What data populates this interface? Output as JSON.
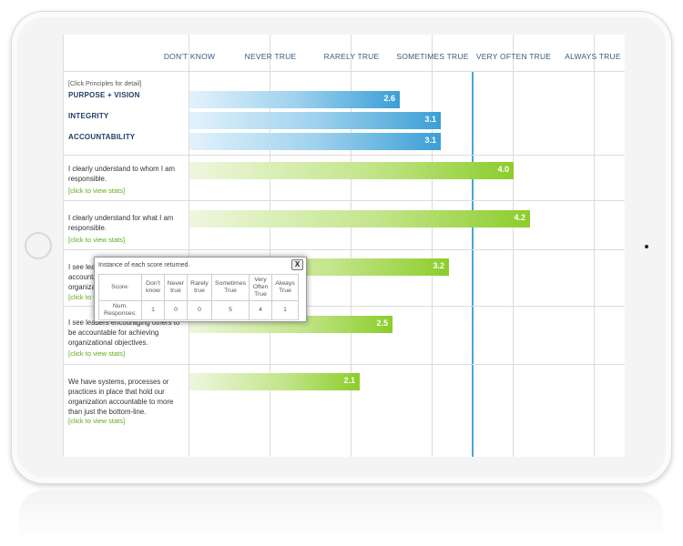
{
  "columns": [
    "DON'T KNOW",
    "NEVER TRUE",
    "RARELY TRUE",
    "SOMETIMES TRUE",
    "VERY OFTEN TRUE",
    "ALWAYS TRUE"
  ],
  "hint": "[Click Principles for detail]",
  "principles": [
    {
      "label": "PURPOSE + VISION",
      "value": "2.6"
    },
    {
      "label": "INTEGRITY",
      "value": "3.1"
    },
    {
      "label": "ACCOUNTABILITY",
      "value": "3.1"
    }
  ],
  "questions": [
    {
      "text": "I clearly understand to whom I am responsible.",
      "link": "[click to view stats]",
      "value": "4.0"
    },
    {
      "text": "I clearly understand for what I am responsible.",
      "link": "[click to view stats]",
      "value": "4.2"
    },
    {
      "text": "I see leaders holding each other accountable for the good of the organization.",
      "link": "[click to view stats]",
      "value": "3.2"
    },
    {
      "text": "I see leaders encouraging others to be accountable for achieving organizational objectives.",
      "link": "[click to view stats]",
      "value": "2.5"
    },
    {
      "text": "We have systems, processes or practices in place that hold our organization accountable to more than just the bottom-line.",
      "link": "[click to view stats]",
      "value": "2.1"
    }
  ],
  "popup": {
    "title": "Instance of each score returned.",
    "close": "X",
    "score_label": "Score:",
    "responses_label": "Num. Responses:",
    "headers": [
      "Don't know",
      "Never true",
      "Rarely true",
      "Sometimes True",
      "Very Often True",
      "Always True"
    ],
    "counts": [
      "1",
      "0",
      "0",
      "5",
      "4",
      "1"
    ]
  },
  "chart_data": {
    "type": "bar",
    "orientation": "horizontal",
    "scale_labels": [
      "DON'T KNOW",
      "NEVER TRUE",
      "RARELY TRUE",
      "SOMETIMES TRUE",
      "VERY OFTEN TRUE",
      "ALWAYS TRUE"
    ],
    "xlim": [
      0,
      5
    ],
    "reference_line": 3.5,
    "categories": [
      "PURPOSE + VISION",
      "INTEGRITY",
      "ACCOUNTABILITY",
      "I clearly understand to whom I am responsible.",
      "I clearly understand for what I am responsible.",
      "I see leaders holding each other accountable for the good of the organization.",
      "I see leaders encouraging others to be accountable for achieving organizational objectives.",
      "We have systems, processes or practices in place that hold our organization accountable to more than just the bottom-line."
    ],
    "values": [
      2.6,
      3.1,
      3.1,
      4.0,
      4.2,
      3.2,
      2.5,
      2.1
    ],
    "colors": {
      "principle_bar": "#3b9fd6",
      "question_bar": "#8ccd2c",
      "reference_line": "#4aa3d8"
    }
  }
}
